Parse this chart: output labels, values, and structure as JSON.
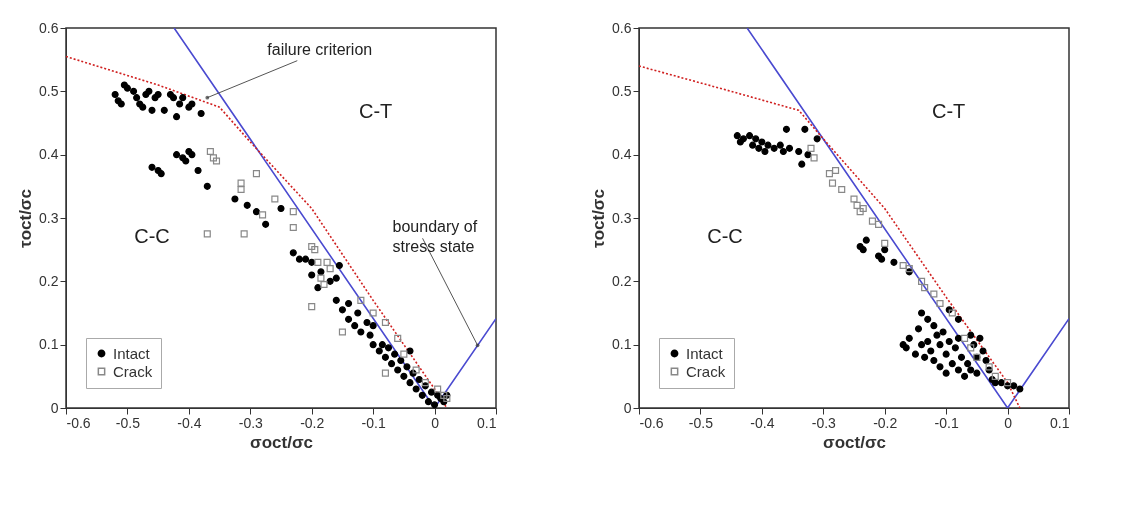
{
  "chart_data": [
    {
      "type": "scatter",
      "xlabel": "σoct/σc",
      "ylabel": "τoct/σc",
      "xlim": [
        -0.6,
        0.1
      ],
      "ylim": [
        0,
        0.6
      ],
      "xticks": [
        -0.6,
        -0.5,
        -0.4,
        -0.3,
        -0.2,
        -0.1,
        0,
        0.1
      ],
      "yticks": [
        0,
        0.1,
        0.2,
        0.3,
        0.4,
        0.5,
        0.6
      ],
      "legend": "bottom left",
      "series": [
        {
          "type": "line",
          "color": "#4a4ad0",
          "line_style": "solid",
          "x": [
            -0.424,
            0,
            0.1
          ],
          "values": [
            0.6,
            0,
            0.141
          ]
        },
        {
          "type": "line",
          "color": "#d02020",
          "line_style": "dotted",
          "x": [
            -0.6,
            -0.45,
            -0.35,
            -0.3,
            -0.2,
            -0.1,
            0,
            0.02
          ],
          "values": [
            0.555,
            0.51,
            0.475,
            0.42,
            0.315,
            0.17,
            0.03,
            0
          ]
        },
        {
          "name": "Intact",
          "color": "#000000",
          "marker": "circle",
          "x": [
            -0.52,
            -0.515,
            -0.51,
            -0.505,
            -0.5,
            -0.49,
            -0.485,
            -0.48,
            -0.475,
            -0.47,
            -0.465,
            -0.46,
            -0.455,
            -0.45,
            -0.44,
            -0.43,
            -0.425,
            -0.42,
            -0.415,
            -0.41,
            -0.4,
            -0.395,
            -0.38,
            -0.46,
            -0.45,
            -0.445,
            -0.42,
            -0.41,
            -0.405,
            -0.4,
            -0.395,
            -0.385,
            -0.37,
            -0.325,
            -0.305,
            -0.29,
            -0.275,
            -0.25,
            -0.23,
            -0.22,
            -0.21,
            -0.2,
            -0.2,
            -0.19,
            -0.185,
            -0.17,
            -0.16,
            -0.155,
            -0.16,
            -0.15,
            -0.14,
            -0.14,
            -0.13,
            -0.125,
            -0.12,
            -0.11,
            -0.105,
            -0.1,
            -0.1,
            -0.09,
            -0.085,
            -0.08,
            -0.075,
            -0.07,
            -0.065,
            -0.06,
            -0.055,
            -0.05,
            -0.045,
            -0.04,
            -0.04,
            -0.035,
            -0.03,
            -0.025,
            -0.02,
            -0.015,
            -0.01,
            -0.005,
            0,
            0.005,
            0.01,
            0.015,
            0.02
          ],
          "values": [
            0.495,
            0.485,
            0.48,
            0.51,
            0.505,
            0.5,
            0.49,
            0.48,
            0.475,
            0.495,
            0.5,
            0.47,
            0.49,
            0.495,
            0.47,
            0.495,
            0.49,
            0.46,
            0.48,
            0.49,
            0.475,
            0.48,
            0.465,
            0.38,
            0.375,
            0.37,
            0.4,
            0.395,
            0.39,
            0.405,
            0.4,
            0.375,
            0.35,
            0.33,
            0.32,
            0.31,
            0.29,
            0.315,
            0.245,
            0.235,
            0.235,
            0.23,
            0.21,
            0.19,
            0.215,
            0.2,
            0.205,
            0.225,
            0.17,
            0.155,
            0.14,
            0.165,
            0.13,
            0.15,
            0.12,
            0.135,
            0.115,
            0.13,
            0.1,
            0.09,
            0.1,
            0.08,
            0.095,
            0.07,
            0.085,
            0.06,
            0.075,
            0.05,
            0.065,
            0.09,
            0.04,
            0.055,
            0.03,
            0.045,
            0.02,
            0.035,
            0.01,
            0.025,
            0.005,
            0.02,
            0.015,
            0.01,
            0.02
          ]
        },
        {
          "name": "Crack",
          "color": "#888888",
          "marker": "square",
          "x": [
            -0.37,
            -0.365,
            -0.36,
            -0.355,
            -0.31,
            -0.315,
            -0.315,
            -0.29,
            -0.28,
            -0.26,
            -0.23,
            -0.23,
            -0.2,
            -0.195,
            -0.19,
            -0.185,
            -0.18,
            -0.175,
            -0.17,
            -0.2,
            -0.15,
            -0.12,
            -0.1,
            -0.08,
            -0.08,
            -0.06,
            -0.05,
            -0.03,
            -0.015,
            0.005,
            0.015,
            0.02
          ],
          "values": [
            0.275,
            0.405,
            0.395,
            0.39,
            0.275,
            0.355,
            0.345,
            0.37,
            0.305,
            0.33,
            0.285,
            0.31,
            0.255,
            0.25,
            0.23,
            0.205,
            0.195,
            0.23,
            0.22,
            0.16,
            0.12,
            0.17,
            0.15,
            0.135,
            0.055,
            0.11,
            0.085,
            0.06,
            0.04,
            0.03,
            0.02,
            0.015
          ]
        }
      ],
      "annotations": [
        {
          "text": "failure criterion",
          "x": -0.37,
          "y": 0.49
        },
        {
          "text": "boundary of stress state",
          "x": 0.07,
          "y": 0.099
        },
        "C-T",
        "C-C"
      ]
    },
    {
      "type": "scatter",
      "xlabel": "σoct/σc",
      "ylabel": "τoct/σc",
      "xlim": [
        -0.6,
        0.1
      ],
      "ylim": [
        0,
        0.6
      ],
      "xticks": [
        -0.6,
        -0.5,
        -0.4,
        -0.3,
        -0.2,
        -0.1,
        0,
        0.1
      ],
      "yticks": [
        0,
        0.1,
        0.2,
        0.3,
        0.4,
        0.5,
        0.6
      ],
      "legend": "bottom left",
      "series": [
        {
          "type": "line",
          "color": "#4a4ad0",
          "line_style": "solid",
          "x": [
            -0.424,
            0,
            0.1
          ],
          "values": [
            0.6,
            0,
            0.141
          ]
        },
        {
          "type": "line",
          "color": "#d02020",
          "line_style": "dotted",
          "x": [
            -0.6,
            -0.45,
            -0.34,
            -0.3,
            -0.2,
            -0.1,
            0,
            0.02
          ],
          "values": [
            0.54,
            0.5,
            0.47,
            0.425,
            0.315,
            0.175,
            0.04,
            0.0
          ]
        },
        {
          "name": "Intact",
          "color": "#000000",
          "marker": "circle",
          "x": [
            -0.44,
            -0.435,
            -0.43,
            -0.42,
            -0.415,
            -0.41,
            -0.405,
            -0.4,
            -0.395,
            -0.39,
            -0.38,
            -0.37,
            -0.365,
            -0.36,
            -0.355,
            -0.34,
            -0.335,
            -0.33,
            -0.325,
            -0.31,
            -0.24,
            -0.235,
            -0.23,
            -0.21,
            -0.205,
            -0.2,
            -0.185,
            -0.16,
            -0.095,
            -0.08,
            -0.17,
            -0.165,
            -0.16,
            -0.15,
            -0.145,
            -0.14,
            -0.14,
            -0.135,
            -0.13,
            -0.13,
            -0.125,
            -0.12,
            -0.12,
            -0.115,
            -0.11,
            -0.11,
            -0.105,
            -0.1,
            -0.1,
            -0.095,
            -0.09,
            -0.085,
            -0.08,
            -0.08,
            -0.075,
            -0.07,
            -0.065,
            -0.06,
            -0.06,
            -0.055,
            -0.05,
            -0.05,
            -0.045,
            -0.04,
            -0.035,
            -0.03,
            -0.025,
            -0.02,
            -0.01,
            0,
            0.01,
            0.02
          ],
          "values": [
            0.43,
            0.42,
            0.425,
            0.43,
            0.415,
            0.425,
            0.41,
            0.42,
            0.405,
            0.415,
            0.41,
            0.415,
            0.405,
            0.44,
            0.41,
            0.405,
            0.385,
            0.44,
            0.4,
            0.425,
            0.255,
            0.25,
            0.265,
            0.24,
            0.235,
            0.25,
            0.23,
            0.215,
            0.155,
            0.14,
            0.1,
            0.095,
            0.11,
            0.085,
            0.125,
            0.15,
            0.1,
            0.08,
            0.14,
            0.105,
            0.09,
            0.13,
            0.075,
            0.115,
            0.1,
            0.065,
            0.12,
            0.085,
            0.055,
            0.105,
            0.07,
            0.095,
            0.06,
            0.11,
            0.08,
            0.05,
            0.07,
            0.115,
            0.06,
            0.1,
            0.08,
            0.055,
            0.11,
            0.09,
            0.075,
            0.06,
            0.045,
            0.04,
            0.04,
            0.035,
            0.035,
            0.03
          ]
        },
        {
          "name": "Crack",
          "color": "#888888",
          "marker": "square",
          "x": [
            -0.32,
            -0.315,
            -0.29,
            -0.28,
            -0.285,
            -0.27,
            -0.25,
            -0.245,
            -0.24,
            -0.235,
            -0.22,
            -0.21,
            -0.2,
            -0.17,
            -0.16,
            -0.14,
            -0.135,
            -0.12,
            -0.11,
            -0.09,
            -0.07,
            -0.06,
            -0.05,
            -0.03,
            -0.02,
            0
          ],
          "values": [
            0.41,
            0.395,
            0.37,
            0.375,
            0.355,
            0.345,
            0.33,
            0.32,
            0.31,
            0.315,
            0.295,
            0.29,
            0.26,
            0.225,
            0.22,
            0.2,
            0.19,
            0.18,
            0.165,
            0.15,
            0.11,
            0.095,
            0.08,
            0.065,
            0.05,
            0.04
          ]
        }
      ],
      "annotations": [
        "C-T",
        "C-C"
      ]
    }
  ]
}
